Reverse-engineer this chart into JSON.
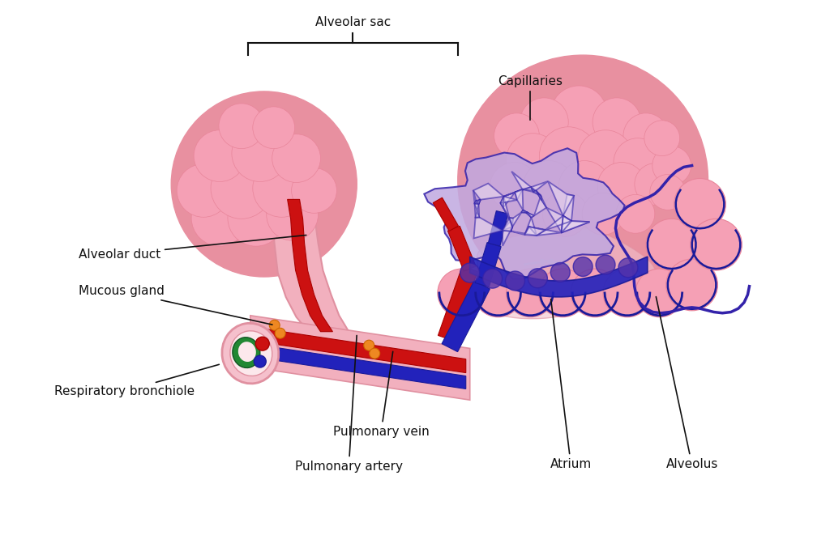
{
  "bg_color": "#ffffff",
  "pink_sac": "#f5a0b5",
  "pink_sac_dark": "#e8859a",
  "pink_sac_shadow": "#e890a0",
  "pink_duct": "#f2b0be",
  "pink_duct_edge": "#e090a0",
  "pink_bronch": "#f5c0cc",
  "pink_bronch_edge": "#e090a0",
  "red_artery": "#cc1111",
  "blue_vein": "#2222bb",
  "blue_dark": "#1a1a99",
  "purple_cap": "#5533aa",
  "purple_cap_fill": "#c0a8e0",
  "purple_cap_edge": "#3322aa",
  "green_bronch": "#228833",
  "orange_gland": "#ee8822",
  "pink_atrium": "#f0a8b8",
  "pink_alv_wall": "#e8a0b0",
  "gray_arrows": "#d0b8c8",
  "text_color": "#111111",
  "labels": {
    "alveolar_sac": "Alveolar sac",
    "capillaries": "Capillaries",
    "alveolar_duct": "Alveolar duct",
    "mucous_gland": "Mucous gland",
    "resp_bronchiole": "Respiratory bronchiole",
    "pulm_vein": "Pulmonary vein",
    "pulm_artery": "Pulmonary artery",
    "atrium": "Atrium",
    "alveolus": "Alveolus"
  },
  "font_size": 11
}
